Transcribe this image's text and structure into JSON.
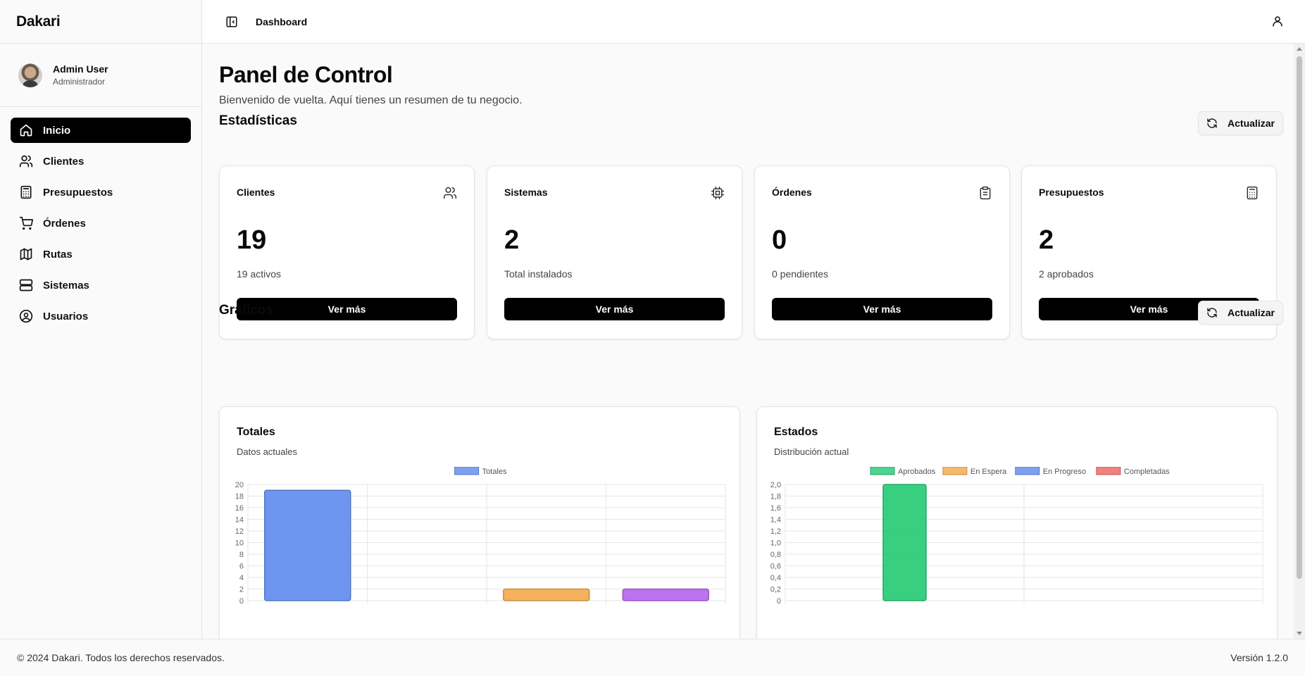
{
  "app": {
    "brand": "Dakari"
  },
  "user": {
    "name": "Admin User",
    "role": "Administrador"
  },
  "sidebar": {
    "items": [
      {
        "label": "Inicio",
        "icon": "home-icon",
        "active": true
      },
      {
        "label": "Clientes",
        "icon": "users-icon"
      },
      {
        "label": "Presupuestos",
        "icon": "calculator-icon"
      },
      {
        "label": "Órdenes",
        "icon": "cart-icon"
      },
      {
        "label": "Rutas",
        "icon": "map-icon"
      },
      {
        "label": "Sistemas",
        "icon": "server-icon"
      },
      {
        "label": "Usuarios",
        "icon": "user-circle-icon"
      }
    ]
  },
  "header": {
    "breadcrumb": "Dashboard"
  },
  "main": {
    "title": "Panel de Control",
    "subtitle": "Bienvenido de vuelta. Aquí tienes un resumen de tu negocio.",
    "stats_title": "Estadísticas",
    "charts_title": "Gráficos",
    "refresh_label": "Actualizar"
  },
  "stats": [
    {
      "label": "Clientes",
      "value": "19",
      "sub": "19 activos",
      "button": "Ver más",
      "icon": "users-icon"
    },
    {
      "label": "Sistemas",
      "value": "2",
      "sub": "Total instalados",
      "button": "Ver más",
      "icon": "cpu-icon"
    },
    {
      "label": "Órdenes",
      "value": "0",
      "sub": "0 pendientes",
      "button": "Ver más",
      "icon": "clipboard-icon"
    },
    {
      "label": "Presupuestos",
      "value": "2",
      "sub": "2 aprobados",
      "button": "Ver más",
      "icon": "calculator-icon"
    }
  ],
  "charts": {
    "totales": {
      "title": "Totales",
      "subtitle": "Datos actuales"
    },
    "estados": {
      "title": "Estados",
      "subtitle": "Distribución actual"
    }
  },
  "chart_data": [
    {
      "type": "bar",
      "title": "Totales",
      "categories": [
        "",
        "",
        "",
        ""
      ],
      "series": [
        {
          "name": "Totales",
          "values": [
            19,
            0,
            2,
            2
          ]
        }
      ],
      "bar_colors": [
        "#6690f0",
        "#6690f0",
        "#f4ad52",
        "#b96cef"
      ],
      "legend_color": "#6690f0",
      "ylim": [
        0,
        20
      ],
      "yticks": [
        "0",
        "2",
        "4",
        "6",
        "8",
        "10",
        "12",
        "14",
        "16",
        "18",
        "20"
      ],
      "grid": true,
      "legend": "top"
    },
    {
      "type": "bar",
      "title": "Estados",
      "categories": [
        "",
        ""
      ],
      "series": [
        {
          "name": "Aprobados",
          "values": [
            2,
            0
          ],
          "color": "#2ecc7a"
        },
        {
          "name": "En Espera",
          "values": [
            0,
            0
          ],
          "color": "#f4ad52"
        },
        {
          "name": "En Progreso",
          "values": [
            0,
            0
          ],
          "color": "#6690f0"
        },
        {
          "name": "Completadas",
          "values": [
            0,
            0
          ],
          "color": "#f06a6a"
        }
      ],
      "ylim": [
        0,
        2
      ],
      "yticks": [
        "0",
        "0,2",
        "0,4",
        "0,6",
        "0,8",
        "1,0",
        "1,2",
        "1,4",
        "1,6",
        "1,8",
        "2,0"
      ],
      "grid": true,
      "legend": "top"
    }
  ],
  "footer": {
    "copyright": "© 2024 Dakari. Todos los derechos reservados.",
    "version": "Versión 1.2.0"
  }
}
